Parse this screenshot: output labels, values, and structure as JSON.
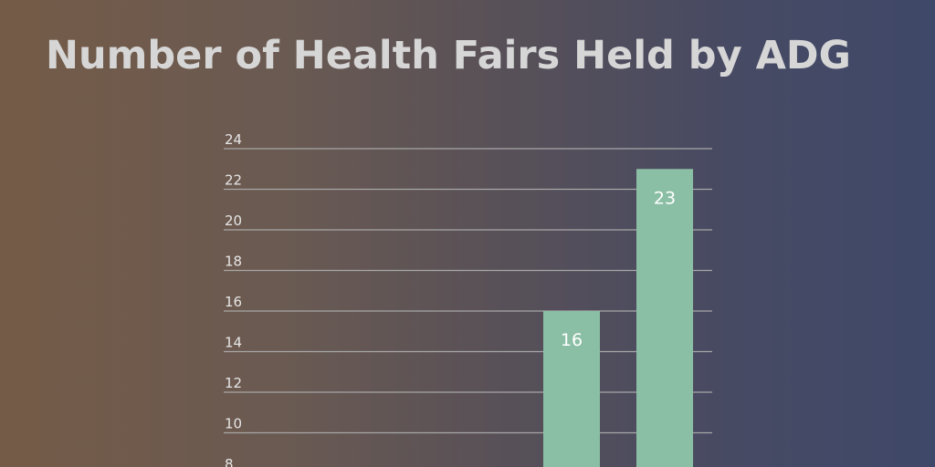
{
  "chart_data": {
    "type": "bar",
    "title": "Number of Health Fairs Held by ADG",
    "xlabel": "",
    "ylabel": "",
    "categories": [
      "",
      ""
    ],
    "values": [
      16,
      23
    ],
    "ylim": [
      8,
      24
    ],
    "yticks": [
      24,
      22,
      20,
      18,
      16,
      14,
      12,
      10,
      8
    ],
    "grid": true,
    "colors": {
      "bar": "#8bbfa5",
      "grid": "#a7a7a7",
      "title": "#d6d6d6",
      "tick_label": "#e6e6e6",
      "data_label": "#ffffff"
    }
  }
}
